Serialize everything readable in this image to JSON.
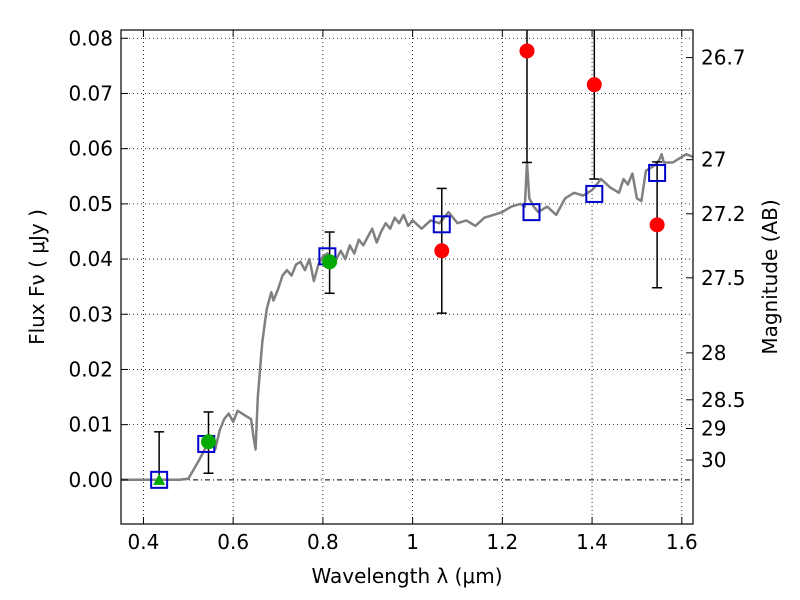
{
  "chart_data": {
    "type": "scatter",
    "xlabel": "Wavelength  λ (μm)",
    "ylabel": "Flux  Fν  ( μJy )",
    "y2label": "Magnitude (AB)",
    "xlim": [
      0.35,
      1.625
    ],
    "ylim": [
      -0.008,
      0.0815
    ],
    "xticks": [
      0.4,
      0.6,
      0.8,
      1.0,
      1.2,
      1.4,
      1.6
    ],
    "xtick_labels": [
      "0.4",
      "0.6",
      "0.8",
      "1",
      "1.2",
      "1.4",
      "1.6"
    ],
    "yticks": [
      0.0,
      0.01,
      0.02,
      0.03,
      0.04,
      0.05,
      0.06,
      0.07,
      0.08
    ],
    "ytick_labels": [
      "0.00",
      "0.01",
      "0.02",
      "0.03",
      "0.04",
      "0.05",
      "0.06",
      "0.07",
      "0.08"
    ],
    "y2ticks": [
      {
        "label": "26.7",
        "flux": 0.0765
      },
      {
        "label": "27",
        "flux": 0.058
      },
      {
        "label": "27.2",
        "flux": 0.0482
      },
      {
        "label": "27.5",
        "flux": 0.0366
      },
      {
        "label": "28",
        "flux": 0.023
      },
      {
        "label": "28.5",
        "flux": 0.0145
      },
      {
        "label": "29",
        "flux": 0.0093
      },
      {
        "label": "30",
        "flux": 0.0036
      }
    ],
    "grid": true,
    "zero_line": true,
    "colors": {
      "spectrum": "#808080",
      "red_points": "#ff0000",
      "green_points": "#00aa00",
      "model_squares": "#0000cc",
      "errorbars": "#000000"
    },
    "series": [
      {
        "marker": "line",
        "points": [
          [
            0.35,
            0.0
          ],
          [
            0.48,
            0.0
          ],
          [
            0.5,
            0.0002
          ],
          [
            0.52,
            0.003
          ],
          [
            0.53,
            0.0045
          ],
          [
            0.54,
            0.006
          ],
          [
            0.55,
            0.008
          ],
          [
            0.56,
            0.0055
          ],
          [
            0.57,
            0.009
          ],
          [
            0.58,
            0.011
          ],
          [
            0.59,
            0.012
          ],
          [
            0.6,
            0.0105
          ],
          [
            0.61,
            0.0125
          ],
          [
            0.62,
            0.012
          ],
          [
            0.63,
            0.0115
          ],
          [
            0.64,
            0.011
          ],
          [
            0.645,
            0.008
          ],
          [
            0.65,
            0.0055
          ],
          [
            0.655,
            0.015
          ],
          [
            0.665,
            0.025
          ],
          [
            0.675,
            0.031
          ],
          [
            0.685,
            0.034
          ],
          [
            0.69,
            0.0325
          ],
          [
            0.7,
            0.0345
          ],
          [
            0.71,
            0.037
          ],
          [
            0.72,
            0.038
          ],
          [
            0.73,
            0.037
          ],
          [
            0.74,
            0.039
          ],
          [
            0.75,
            0.0395
          ],
          [
            0.76,
            0.038
          ],
          [
            0.77,
            0.04
          ],
          [
            0.78,
            0.036
          ],
          [
            0.79,
            0.039
          ],
          [
            0.8,
            0.0405
          ],
          [
            0.81,
            0.041
          ],
          [
            0.82,
            0.039
          ],
          [
            0.83,
            0.04
          ],
          [
            0.84,
            0.0415
          ],
          [
            0.85,
            0.04
          ],
          [
            0.86,
            0.0425
          ],
          [
            0.87,
            0.041
          ],
          [
            0.88,
            0.0435
          ],
          [
            0.89,
            0.0425
          ],
          [
            0.9,
            0.044
          ],
          [
            0.91,
            0.0455
          ],
          [
            0.92,
            0.043
          ],
          [
            0.93,
            0.045
          ],
          [
            0.94,
            0.0465
          ],
          [
            0.95,
            0.0455
          ],
          [
            0.96,
            0.0475
          ],
          [
            0.97,
            0.0465
          ],
          [
            0.98,
            0.048
          ],
          [
            0.99,
            0.046
          ],
          [
            1.0,
            0.047
          ],
          [
            1.02,
            0.0455
          ],
          [
            1.04,
            0.047
          ],
          [
            1.06,
            0.0465
          ],
          [
            1.08,
            0.0485
          ],
          [
            1.1,
            0.0465
          ],
          [
            1.12,
            0.047
          ],
          [
            1.14,
            0.046
          ],
          [
            1.16,
            0.0475
          ],
          [
            1.18,
            0.048
          ],
          [
            1.2,
            0.0485
          ],
          [
            1.22,
            0.0495
          ],
          [
            1.24,
            0.05
          ],
          [
            1.25,
            0.0495
          ],
          [
            1.255,
            0.0575
          ],
          [
            1.26,
            0.051
          ],
          [
            1.27,
            0.0495
          ],
          [
            1.28,
            0.0485
          ],
          [
            1.3,
            0.0495
          ],
          [
            1.32,
            0.048
          ],
          [
            1.34,
            0.051
          ],
          [
            1.36,
            0.052
          ],
          [
            1.38,
            0.0515
          ],
          [
            1.4,
            0.0525
          ],
          [
            1.42,
            0.0545
          ],
          [
            1.44,
            0.053
          ],
          [
            1.46,
            0.052
          ],
          [
            1.47,
            0.0545
          ],
          [
            1.48,
            0.0535
          ],
          [
            1.49,
            0.0555
          ],
          [
            1.5,
            0.051
          ],
          [
            1.51,
            0.0505
          ],
          [
            1.52,
            0.056
          ],
          [
            1.53,
            0.0565
          ],
          [
            1.54,
            0.057
          ],
          [
            1.55,
            0.058
          ],
          [
            1.555,
            0.059
          ],
          [
            1.56,
            0.0575
          ],
          [
            1.58,
            0.0575
          ],
          [
            1.6,
            0.0585
          ],
          [
            1.61,
            0.059
          ],
          [
            1.625,
            0.0585
          ]
        ]
      },
      {
        "marker": "circle",
        "color": "red",
        "points": [
          {
            "x": 1.065,
            "y": 0.0415,
            "err": [
              0.0302,
              0.0528
            ]
          },
          {
            "x": 1.255,
            "y": 0.0777,
            "err": [
              0.0575,
              0.0815
            ]
          },
          {
            "x": 1.405,
            "y": 0.0716,
            "err": [
              0.0545,
              0.0815
            ]
          },
          {
            "x": 1.545,
            "y": 0.0462,
            "err": [
              0.0348,
              0.0576
            ]
          }
        ]
      },
      {
        "marker": "circle",
        "color": "green",
        "points": [
          {
            "x": 0.545,
            "y": 0.0069,
            "err": [
              0.0012,
              0.0123
            ]
          },
          {
            "x": 0.815,
            "y": 0.0395,
            "err": [
              0.0338,
              0.0449
            ]
          }
        ]
      },
      {
        "marker": "triangle",
        "color": "green",
        "points": [
          {
            "x": 0.435,
            "y": 0.0,
            "err": [
              0.0,
              0.0087
            ]
          }
        ]
      },
      {
        "marker": "square",
        "color": "blue",
        "points": [
          {
            "x": 0.435,
            "y": 0.0
          },
          {
            "x": 0.54,
            "y": 0.0065
          },
          {
            "x": 0.81,
            "y": 0.0405
          },
          {
            "x": 1.065,
            "y": 0.0463
          },
          {
            "x": 1.265,
            "y": 0.0485
          },
          {
            "x": 1.405,
            "y": 0.0518
          },
          {
            "x": 1.545,
            "y": 0.0556
          }
        ]
      }
    ]
  }
}
